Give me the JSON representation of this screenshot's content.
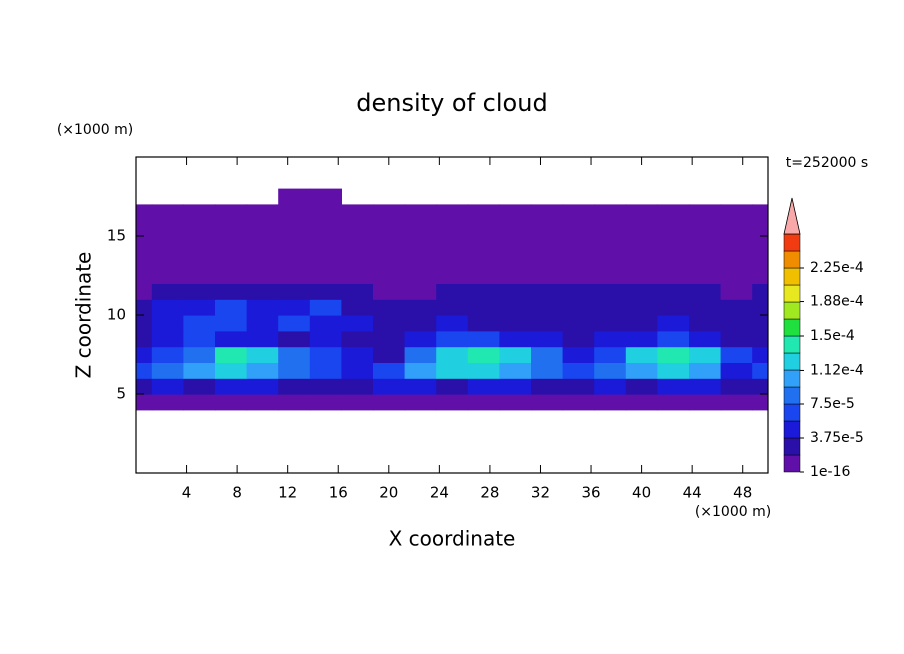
{
  "chart_data": {
    "type": "contour",
    "title": "density of cloud",
    "annotation": "t=252000 s",
    "xlabel": "X coordinate",
    "ylabel": "Z coordinate",
    "xunit": "(×1000 m)",
    "yunit": "(×1000 m)",
    "xlim": [
      0,
      50
    ],
    "ylim": [
      0,
      20
    ],
    "xticks": [
      4,
      8,
      12,
      16,
      20,
      24,
      28,
      32,
      36,
      40,
      44,
      48
    ],
    "yticks": [
      5,
      10,
      15
    ],
    "x": [
      0,
      2.5,
      5,
      7.5,
      10,
      12.5,
      15,
      17.5,
      20,
      22.5,
      25,
      27.5,
      30,
      32.5,
      35,
      37.5,
      40,
      42.5,
      45,
      47.5,
      50
    ],
    "y": [
      4.5,
      5.5,
      6.5,
      7.5,
      8.5,
      9.5,
      10.5,
      11.5,
      12.5,
      13.5,
      14.5,
      15.5,
      16.5,
      17.5
    ],
    "z": [
      [
        5e-06,
        5e-06,
        5e-06,
        5e-06,
        5e-06,
        5e-06,
        5e-06,
        5e-06,
        5e-06,
        5e-06,
        5e-06,
        5e-06,
        5e-06,
        5e-06,
        5e-06,
        5e-06,
        5e-06,
        5e-06,
        5e-06,
        5e-06,
        5e-06
      ],
      [
        2.5e-05,
        4.5e-05,
        2.5e-05,
        4.5e-05,
        4.5e-05,
        2.5e-05,
        2.5e-05,
        2.5e-05,
        4.5e-05,
        4.5e-05,
        2.5e-05,
        4.5e-05,
        4.5e-05,
        2.5e-05,
        2.5e-05,
        4.5e-05,
        2.5e-05,
        4.5e-05,
        4.5e-05,
        2.5e-05,
        2.5e-05
      ],
      [
        6.5e-05,
        8e-05,
        0.0001,
        0.00012,
        0.0001,
        8e-05,
        6.5e-05,
        4.5e-05,
        6.5e-05,
        0.0001,
        0.00012,
        0.00012,
        0.0001,
        8e-05,
        6.5e-05,
        8e-05,
        0.0001,
        0.00012,
        0.0001,
        4.5e-05,
        6.5e-05
      ],
      [
        4.5e-05,
        6.5e-05,
        8e-05,
        0.000145,
        0.00012,
        8e-05,
        6.5e-05,
        4.5e-05,
        2.5e-05,
        8e-05,
        0.00012,
        0.000145,
        0.00012,
        8e-05,
        4.5e-05,
        6.5e-05,
        0.00012,
        0.000145,
        0.00012,
        6.5e-05,
        4.5e-05
      ],
      [
        2.5e-05,
        4.5e-05,
        6.5e-05,
        4.5e-05,
        4.5e-05,
        2.5e-05,
        4.5e-05,
        2.5e-05,
        2.5e-05,
        4.5e-05,
        6.5e-05,
        6.5e-05,
        4.5e-05,
        4.5e-05,
        2.5e-05,
        4.5e-05,
        4.5e-05,
        6.5e-05,
        4.5e-05,
        2.5e-05,
        2.5e-05
      ],
      [
        2.5e-05,
        4.5e-05,
        6.5e-05,
        6.5e-05,
        4.5e-05,
        6.5e-05,
        4.5e-05,
        4.5e-05,
        2.5e-05,
        2.5e-05,
        4.5e-05,
        2.5e-05,
        2.5e-05,
        2.5e-05,
        2.5e-05,
        2.5e-05,
        2.5e-05,
        4.5e-05,
        2.5e-05,
        2.5e-05,
        2.5e-05
      ],
      [
        2.5e-05,
        4.5e-05,
        4.5e-05,
        6.5e-05,
        4.5e-05,
        4.5e-05,
        6.5e-05,
        2.5e-05,
        2.5e-05,
        2.5e-05,
        2.5e-05,
        2.5e-05,
        2.5e-05,
        2.5e-05,
        2.5e-05,
        2.5e-05,
        2.5e-05,
        2.5e-05,
        2.5e-05,
        2.5e-05,
        2.5e-05
      ],
      [
        5e-06,
        2.5e-05,
        2.5e-05,
        2.5e-05,
        2.5e-05,
        2.5e-05,
        2.5e-05,
        2.5e-05,
        5e-06,
        5e-06,
        2.5e-05,
        2.5e-05,
        2.5e-05,
        2.5e-05,
        2.5e-05,
        2.5e-05,
        2.5e-05,
        2.5e-05,
        2.5e-05,
        5e-06,
        2.5e-05
      ],
      [
        5e-06,
        5e-06,
        5e-06,
        5e-06,
        5e-06,
        5e-06,
        5e-06,
        5e-06,
        5e-06,
        5e-06,
        5e-06,
        5e-06,
        5e-06,
        5e-06,
        5e-06,
        5e-06,
        5e-06,
        5e-06,
        5e-06,
        5e-06,
        5e-06
      ],
      [
        5e-06,
        5e-06,
        5e-06,
        5e-06,
        5e-06,
        5e-06,
        5e-06,
        5e-06,
        5e-06,
        5e-06,
        5e-06,
        5e-06,
        5e-06,
        5e-06,
        5e-06,
        5e-06,
        5e-06,
        5e-06,
        5e-06,
        5e-06,
        5e-06
      ],
      [
        5e-06,
        5e-06,
        5e-06,
        5e-06,
        5e-06,
        5e-06,
        5e-06,
        5e-06,
        5e-06,
        5e-06,
        5e-06,
        5e-06,
        5e-06,
        5e-06,
        5e-06,
        5e-06,
        5e-06,
        5e-06,
        5e-06,
        5e-06,
        5e-06
      ],
      [
        5e-06,
        5e-06,
        5e-06,
        5e-06,
        5e-06,
        5e-06,
        5e-06,
        5e-06,
        5e-06,
        5e-06,
        5e-06,
        5e-06,
        5e-06,
        5e-06,
        5e-06,
        5e-06,
        5e-06,
        5e-06,
        5e-06,
        5e-06,
        5e-06
      ],
      [
        5e-06,
        5e-06,
        5e-06,
        5e-06,
        5e-06,
        5e-06,
        5e-06,
        5e-06,
        5e-06,
        5e-06,
        5e-06,
        5e-06,
        5e-06,
        5e-06,
        5e-06,
        5e-06,
        5e-06,
        5e-06,
        5e-06,
        5e-06,
        5e-06
      ],
      [
        null,
        null,
        null,
        null,
        null,
        5e-06,
        5e-06,
        null,
        null,
        null,
        null,
        null,
        null,
        null,
        null,
        null,
        null,
        null,
        null,
        null,
        null
      ]
    ],
    "colorbar": {
      "ticks": [
        {
          "value": 1e-16,
          "label": "1e-16"
        },
        {
          "value": 3.75e-05,
          "label": "3.75e-5"
        },
        {
          "value": 7.5e-05,
          "label": "7.5e-5"
        },
        {
          "value": 0.000112,
          "label": "1.12e-4"
        },
        {
          "value": 0.00015,
          "label": "1.5e-4"
        },
        {
          "value": 0.000188,
          "label": "1.88e-4"
        },
        {
          "value": 0.000225,
          "label": "2.25e-4"
        }
      ],
      "colors": [
        "#6010a8",
        "#2a10a8",
        "#1a1ad8",
        "#1a46f0",
        "#2070f0",
        "#30a0f8",
        "#20d0e0",
        "#20e8b0",
        "#20e040",
        "#a0e820",
        "#e8e820",
        "#f0c000",
        "#f08c00",
        "#f03c10"
      ],
      "extend_color": "#f8a8a8"
    }
  }
}
